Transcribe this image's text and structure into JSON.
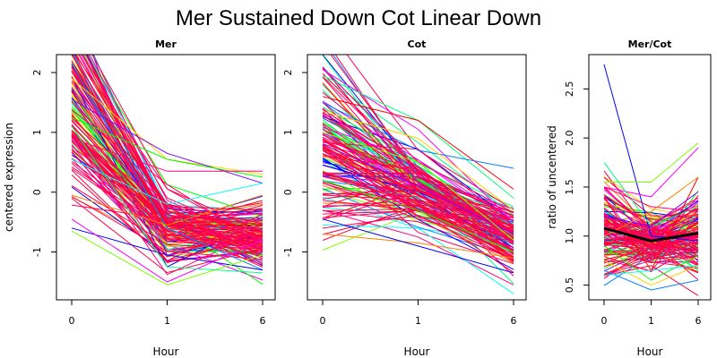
{
  "title": "Mer Sustained Down Cot Linear Down",
  "chart_data": [
    {
      "type": "line",
      "panel_title": "Mer",
      "xlabel": "Hour",
      "ylabel": "centered expression",
      "x_ticks": [
        "0",
        "1",
        "6"
      ],
      "y_ticks": [
        -1,
        0,
        1,
        2
      ],
      "ylim": [
        -1.8,
        2.3
      ],
      "n_lines": 140,
      "profile_means": [
        1.45,
        -0.6,
        -0.75
      ],
      "series": [
        {
          "values": [
            2.2,
            -0.55,
            -0.55
          ]
        },
        {
          "values": [
            2.15,
            -0.6,
            -1.3
          ]
        },
        {
          "values": [
            1.9,
            0.55,
            0.3
          ]
        },
        {
          "values": [
            1.55,
            0.65,
            0.15
          ]
        },
        {
          "values": [
            1.25,
            0.55,
            0.25
          ]
        },
        {
          "values": [
            0.9,
            0.35,
            0.35
          ]
        },
        {
          "values": [
            0.55,
            -0.2,
            0.15
          ]
        },
        {
          "values": [
            -0.05,
            -0.55,
            -0.05
          ]
        },
        {
          "values": [
            -0.6,
            -1.05,
            -1.3
          ]
        },
        {
          "values": [
            -0.65,
            -1.55,
            -1.05
          ]
        },
        {
          "values": [
            -0.45,
            -1.5,
            -0.8
          ]
        },
        {
          "values": [
            1.1,
            -1.25,
            -1.35
          ]
        }
      ]
    },
    {
      "type": "line",
      "panel_title": "Cot",
      "xlabel": "Hour",
      "x_ticks": [
        "0",
        "1",
        "6"
      ],
      "y_ticks": [
        -1,
        0,
        1,
        2
      ],
      "ylim": [
        -1.8,
        2.3
      ],
      "n_lines": 140,
      "profile_means": [
        0.75,
        0.0,
        -0.75
      ],
      "series": [
        {
          "values": [
            2.05,
            1.05,
            -0.5
          ]
        },
        {
          "values": [
            1.95,
            1.2,
            -0.1
          ]
        },
        {
          "values": [
            1.6,
            1.2,
            0.05
          ]
        },
        {
          "values": [
            1.5,
            0.7,
            0.4
          ]
        },
        {
          "values": [
            1.35,
            0.9,
            -0.3
          ]
        },
        {
          "values": [
            0.8,
            0.1,
            -0.7
          ]
        },
        {
          "values": [
            0.2,
            -0.3,
            -1.0
          ]
        },
        {
          "values": [
            -0.3,
            -0.75,
            -1.55
          ]
        },
        {
          "values": [
            -0.55,
            -0.6,
            -1.7
          ]
        },
        {
          "values": [
            -0.7,
            -0.85,
            -1.1
          ]
        },
        {
          "values": [
            -0.45,
            -0.9,
            -1.35
          ]
        },
        {
          "values": [
            1.0,
            0.5,
            -0.8
          ]
        }
      ]
    },
    {
      "type": "line",
      "panel_title": "Mer/Cot",
      "xlabel": "Hour",
      "ylabel": "ratio of uncentered",
      "x_ticks": [
        "0",
        "1",
        "6"
      ],
      "y_ticks": [
        0.5,
        1.0,
        1.5,
        2.0,
        2.5
      ],
      "ylim": [
        0.35,
        2.85
      ],
      "n_lines": 140,
      "profile_means": [
        1.05,
        0.95,
        1.02
      ],
      "mean_line": [
        1.08,
        0.95,
        1.03
      ],
      "series": [
        {
          "values": [
            2.75,
            1.0,
            0.95
          ]
        },
        {
          "values": [
            1.55,
            1.55,
            1.95
          ]
        },
        {
          "values": [
            1.5,
            1.4,
            1.9
          ]
        },
        {
          "values": [
            1.75,
            1.1,
            1.3
          ]
        },
        {
          "values": [
            1.4,
            0.65,
            1.6
          ]
        },
        {
          "values": [
            0.65,
            0.45,
            0.55
          ]
        },
        {
          "values": [
            0.75,
            0.5,
            0.7
          ]
        },
        {
          "values": [
            1.2,
            1.1,
            1.45
          ]
        },
        {
          "values": [
            0.9,
            0.55,
            0.8
          ]
        },
        {
          "values": [
            1.5,
            1.3,
            1.25
          ]
        },
        {
          "values": [
            0.6,
            0.65,
            0.7
          ]
        },
        {
          "values": [
            1.0,
            1.25,
            1.6
          ]
        }
      ]
    }
  ]
}
